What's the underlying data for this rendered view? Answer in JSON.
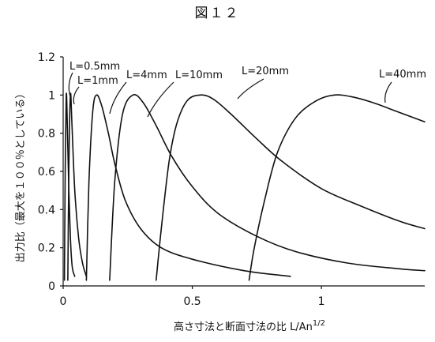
{
  "figure_label": "図１２",
  "chart_data": {
    "type": "line",
    "xlabel": "高さ寸法と断面寸法の比 L/An",
    "xlabel_sup": "1/2",
    "ylabel": "出力比（最大を１００％としている）",
    "xlim": [
      0,
      1.4
    ],
    "ylim": [
      0,
      1.2
    ],
    "x_ticks": [
      {
        "value": 0,
        "label": "0"
      },
      {
        "value": 0.5,
        "label": "0.5"
      },
      {
        "value": 1,
        "label": "1"
      }
    ],
    "y_ticks": [
      {
        "value": 0,
        "label": "0"
      },
      {
        "value": 0.2,
        "label": "0.2"
      },
      {
        "value": 0.4,
        "label": "0.4"
      },
      {
        "value": 0.6,
        "label": "0.6"
      },
      {
        "value": 0.8,
        "label": "0.8"
      },
      {
        "value": 1,
        "label": "1"
      },
      {
        "value": 1.2,
        "label": "1.2"
      }
    ],
    "grid": false,
    "legend": "none",
    "series": [
      {
        "name": "L=0.5mm",
        "values": [
          [
            0.005,
            0.03
          ],
          [
            0.008,
            0.6
          ],
          [
            0.012,
            1.0
          ],
          [
            0.016,
            0.85
          ],
          [
            0.022,
            0.5
          ],
          [
            0.028,
            0.25
          ],
          [
            0.035,
            0.1
          ],
          [
            0.045,
            0.05
          ]
        ]
      },
      {
        "name": "L=1mm",
        "values": [
          [
            0.018,
            0.03
          ],
          [
            0.022,
            0.6
          ],
          [
            0.028,
            1.0
          ],
          [
            0.034,
            0.85
          ],
          [
            0.045,
            0.5
          ],
          [
            0.06,
            0.25
          ],
          [
            0.075,
            0.12
          ],
          [
            0.09,
            0.05
          ]
        ]
      },
      {
        "name": "L=4mm",
        "values": [
          [
            0.09,
            0.03
          ],
          [
            0.1,
            0.55
          ],
          [
            0.115,
            0.92
          ],
          [
            0.13,
            1.0
          ],
          [
            0.15,
            0.94
          ],
          [
            0.175,
            0.8
          ],
          [
            0.2,
            0.64
          ],
          [
            0.24,
            0.45
          ],
          [
            0.3,
            0.3
          ],
          [
            0.38,
            0.2
          ],
          [
            0.5,
            0.14
          ],
          [
            0.7,
            0.08
          ],
          [
            0.88,
            0.05
          ]
        ]
      },
      {
        "name": "L=10mm",
        "values": [
          [
            0.18,
            0.03
          ],
          [
            0.2,
            0.55
          ],
          [
            0.23,
            0.9
          ],
          [
            0.27,
            1.0
          ],
          [
            0.31,
            0.96
          ],
          [
            0.36,
            0.84
          ],
          [
            0.42,
            0.68
          ],
          [
            0.5,
            0.52
          ],
          [
            0.6,
            0.38
          ],
          [
            0.75,
            0.26
          ],
          [
            0.9,
            0.18
          ],
          [
            1.1,
            0.12
          ],
          [
            1.3,
            0.09
          ],
          [
            1.4,
            0.08
          ]
        ]
      },
      {
        "name": "L=20mm",
        "values": [
          [
            0.36,
            0.03
          ],
          [
            0.38,
            0.3
          ],
          [
            0.41,
            0.65
          ],
          [
            0.44,
            0.85
          ],
          [
            0.48,
            0.97
          ],
          [
            0.53,
            1.0
          ],
          [
            0.58,
            0.98
          ],
          [
            0.65,
            0.9
          ],
          [
            0.75,
            0.77
          ],
          [
            0.85,
            0.65
          ],
          [
            1.0,
            0.51
          ],
          [
            1.15,
            0.42
          ],
          [
            1.3,
            0.34
          ],
          [
            1.4,
            0.3
          ]
        ]
      },
      {
        "name": "L=40mm",
        "values": [
          [
            0.72,
            0.03
          ],
          [
            0.74,
            0.2
          ],
          [
            0.78,
            0.45
          ],
          [
            0.83,
            0.7
          ],
          [
            0.9,
            0.88
          ],
          [
            0.98,
            0.97
          ],
          [
            1.05,
            1.0
          ],
          [
            1.12,
            0.99
          ],
          [
            1.2,
            0.96
          ],
          [
            1.3,
            0.91
          ],
          [
            1.4,
            0.86
          ]
        ]
      }
    ],
    "annotations": [
      {
        "text": "L=0.5mm",
        "series": "L=0.5mm"
      },
      {
        "text": "L=1mm",
        "series": "L=1mm"
      },
      {
        "text": "L=4mm",
        "series": "L=4mm"
      },
      {
        "text": "L=10mm",
        "series": "L=10mm"
      },
      {
        "text": "L=20mm",
        "series": "L=20mm"
      },
      {
        "text": "L=40mm",
        "series": "L=40mm"
      }
    ]
  }
}
